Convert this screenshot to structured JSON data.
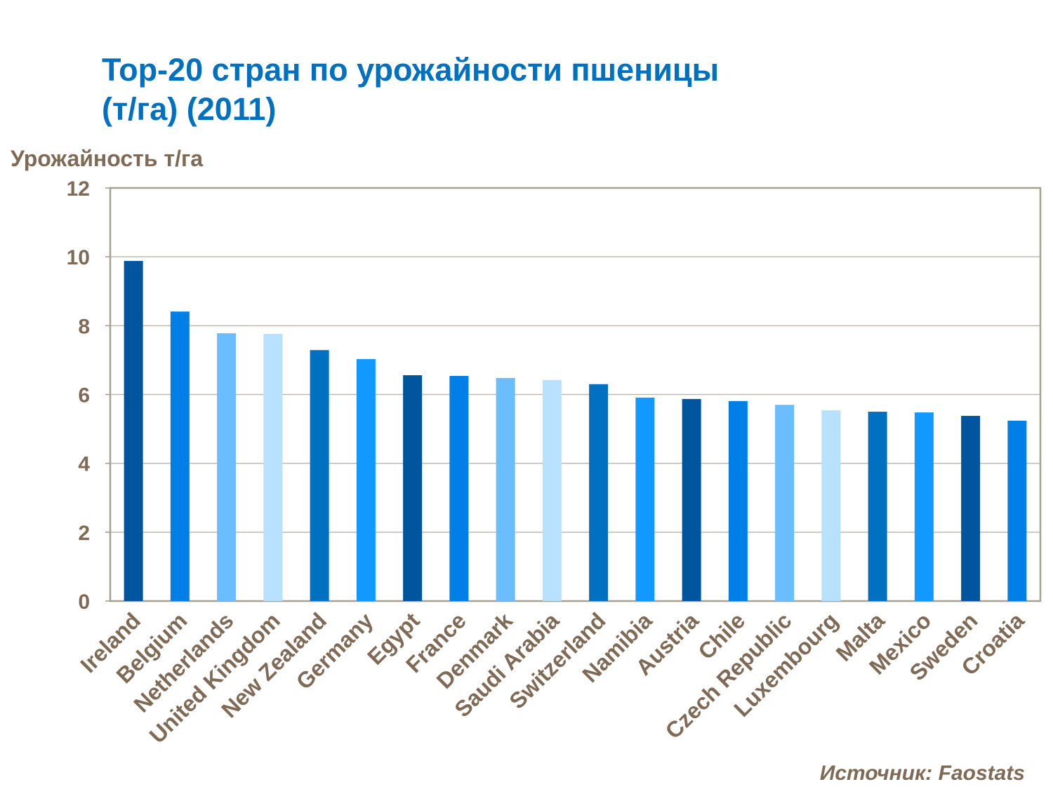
{
  "chart_data": {
    "type": "bar",
    "title": "Top-20 стран по урожайности пшеницы\n(т/га) (2011)",
    "ylabel": "Урожайность т/га",
    "xlabel": "",
    "ylim": [
      0,
      12
    ],
    "yticks": [
      0,
      2,
      4,
      6,
      8,
      10,
      12
    ],
    "grid": true,
    "categories": [
      "Ireland",
      "Belgium",
      "Netherlands",
      "United Kingdom",
      "New Zealand",
      "Germany",
      "Egypt",
      "France",
      "Denmark",
      "Saudi Arabia",
      "Switzerland",
      "Namibia",
      "Austria",
      "Chile",
      "Czech Republic",
      "Luxembourg",
      "Malta",
      "Mexico",
      "Sweden",
      "Croatia"
    ],
    "values": [
      9.88,
      8.41,
      7.78,
      7.76,
      7.29,
      7.03,
      6.56,
      6.54,
      6.48,
      6.42,
      6.3,
      5.91,
      5.87,
      5.81,
      5.7,
      5.54,
      5.5,
      5.48,
      5.38,
      5.24
    ],
    "bar_colors": [
      "#00569E",
      "#0080E6",
      "#6ABEFF",
      "#B8E0FF",
      "#0070C0",
      "#1199FF"
    ],
    "source": "Источник: Faostats"
  }
}
